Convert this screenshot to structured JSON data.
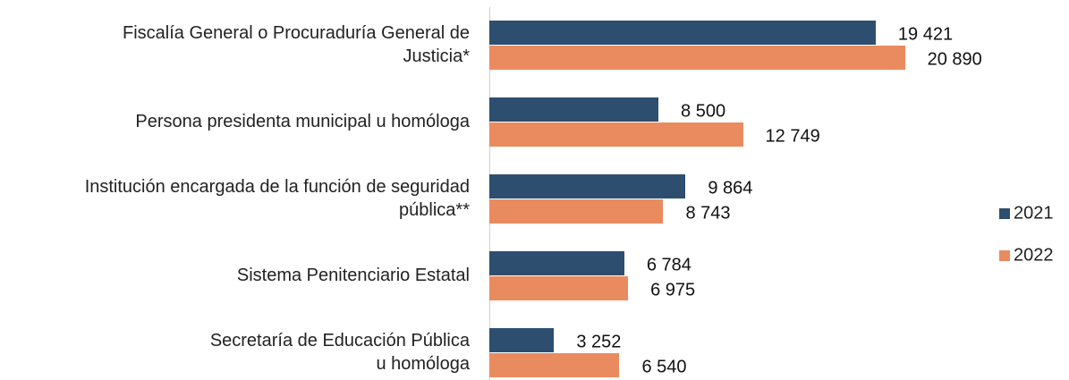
{
  "chart_data": {
    "type": "hbar",
    "categories": [
      "Fiscalía General o Procuraduría General de\nJusticia*",
      "Persona presidenta municipal u homóloga",
      "Institución encargada de la función de seguridad\npública**",
      "Sistema Penitenciario Estatal",
      "Secretaría de Educación Pública\nu homóloga"
    ],
    "series": [
      {
        "name": "2021",
        "color": "#2e4e6f",
        "values": [
          19421,
          8500,
          9864,
          6784,
          3252
        ],
        "value_labels": [
          "19 421",
          "8 500",
          "9 864",
          "6 784",
          "3 252"
        ]
      },
      {
        "name": "2022",
        "color": "#e98b5f",
        "values": [
          20890,
          12749,
          8743,
          6975,
          6540
        ],
        "value_labels": [
          "20 890",
          "12 749",
          "8 743",
          "6 975",
          "6 540"
        ]
      }
    ],
    "xlim": [
      0,
      25000
    ],
    "legend": "right"
  }
}
